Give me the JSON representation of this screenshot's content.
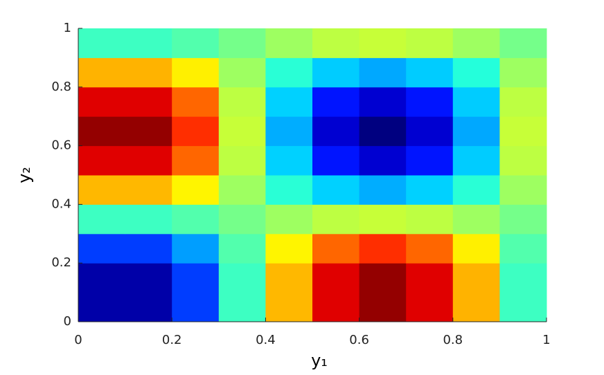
{
  "chart_data": {
    "type": "heatmap",
    "xlabel": "y₁",
    "ylabel": "y₂",
    "x": [
      0.05,
      0.15,
      0.25,
      0.35,
      0.45,
      0.55,
      0.65,
      0.75,
      0.85,
      0.95
    ],
    "y": [
      0.05,
      0.15,
      0.25,
      0.35,
      0.45,
      0.55,
      0.65,
      0.75,
      0.85,
      0.95
    ],
    "values": [
      [
        -0.92,
        -0.92,
        -0.63,
        -0.13,
        0.39,
        0.81,
        0.96,
        0.81,
        0.4,
        -0.13
      ],
      [
        -0.92,
        -0.92,
        -0.63,
        -0.13,
        0.39,
        0.81,
        0.96,
        0.81,
        0.4,
        -0.13
      ],
      [
        -0.63,
        -0.63,
        -0.44,
        -0.09,
        0.27,
        0.55,
        0.66,
        0.55,
        0.28,
        -0.09
      ],
      [
        -0.13,
        -0.13,
        -0.09,
        -0.02,
        0.06,
        0.12,
        0.14,
        0.12,
        0.06,
        -0.02
      ],
      [
        0.39,
        0.39,
        0.27,
        0.06,
        -0.17,
        -0.34,
        -0.41,
        -0.34,
        -0.17,
        0.06
      ],
      [
        0.81,
        0.81,
        0.55,
        0.12,
        -0.34,
        -0.71,
        -0.84,
        -0.71,
        -0.35,
        0.12
      ],
      [
        0.96,
        0.96,
        0.66,
        0.14,
        -0.41,
        -0.84,
        -1,
        -0.84,
        -0.42,
        0.14
      ],
      [
        0.81,
        0.81,
        0.55,
        0.12,
        -0.34,
        -0.71,
        -0.84,
        -0.71,
        -0.35,
        0.12
      ],
      [
        0.4,
        0.4,
        0.28,
        0.06,
        -0.17,
        -0.35,
        -0.42,
        -0.35,
        -0.18,
        0.06
      ],
      [
        -0.13,
        -0.13,
        -0.09,
        -0.02,
        0.06,
        0.12,
        0.14,
        0.12,
        0.06,
        -0.02
      ]
    ],
    "clim": [
      -1,
      1
    ],
    "colormap": "jet",
    "xlim": [
      0,
      1
    ],
    "ylim": [
      0,
      1
    ],
    "xticks": [
      0,
      0.2,
      0.4,
      0.6,
      0.8,
      1
    ],
    "yticks": [
      0,
      0.2,
      0.4,
      0.6,
      0.8,
      1
    ]
  }
}
